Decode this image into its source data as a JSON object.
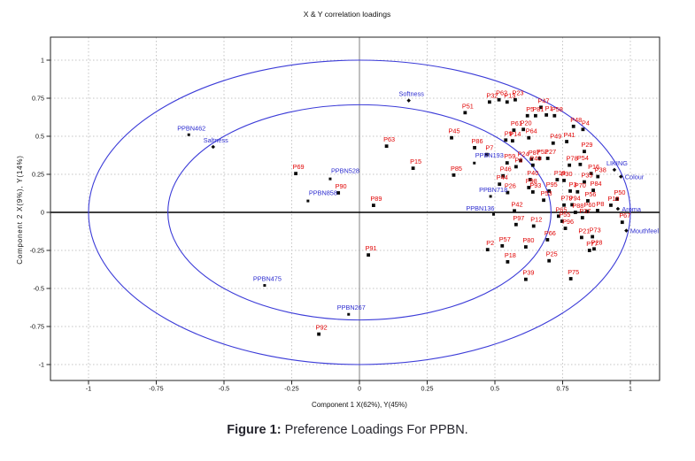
{
  "title": "X & Y correlation loadings",
  "caption": {
    "prefix": "Figure 1:",
    "text": "Preference Loadings For PPBN."
  },
  "axes": {
    "x_label": "Component 1 X(62%), Y(45%)",
    "y_label": "Component 2 X(9%), Y(14%)",
    "x_ticks": [
      "-1",
      "-0.75",
      "-0.5",
      "-0.25",
      "0",
      "0.25",
      "0.5",
      "0.75",
      "1"
    ],
    "y_ticks": [
      "-1",
      "-0.75",
      "-0.5",
      "-0.25",
      "0",
      "0.25",
      "0.5",
      "0.75",
      "1"
    ]
  },
  "colors": {
    "product_label": "#e00000",
    "sample_label": "#2b2bcf",
    "descriptor_label": "#2b2bcf",
    "ellipse": "#3c3cd8",
    "grid": "#c4c4c4",
    "marker": "#0a0a0a",
    "zero_x_line": "#808080",
    "zero_y_line": "#000000"
  },
  "chart_data": {
    "type": "scatter",
    "title": "X & Y correlation loadings",
    "xlabel": "Component 1 X(62%), Y(45%)",
    "ylabel": "Component 2 X(9%), Y(14%)",
    "xlim": [
      -1.14,
      1.11
    ],
    "ylim": [
      -1.15,
      1.15
    ],
    "grid": true,
    "legend": "none",
    "ellipses": [
      {
        "r": 1.0
      },
      {
        "r": 0.7071
      }
    ],
    "series": [
      {
        "name": "products",
        "color": "#e00000",
        "marker": "square",
        "points": [
          {
            "label": "P32",
            "x": 0.48,
            "y": 0.725
          },
          {
            "label": "P62",
            "x": 0.515,
            "y": 0.74
          },
          {
            "label": "P13",
            "x": 0.545,
            "y": 0.725
          },
          {
            "label": "P23",
            "x": 0.575,
            "y": 0.74
          },
          {
            "label": "P51",
            "x": 0.39,
            "y": 0.655
          },
          {
            "label": "P47",
            "x": 0.67,
            "y": 0.69
          },
          {
            "label": "P5",
            "x": 0.62,
            "y": 0.635
          },
          {
            "label": "P81",
            "x": 0.65,
            "y": 0.635
          },
          {
            "label": "P1",
            "x": 0.69,
            "y": 0.64
          },
          {
            "label": "P58",
            "x": 0.72,
            "y": 0.635
          },
          {
            "label": "P48",
            "x": 0.79,
            "y": 0.565
          },
          {
            "label": "P4",
            "x": 0.825,
            "y": 0.545
          },
          {
            "label": "P61",
            "x": 0.57,
            "y": 0.54
          },
          {
            "label": "P20",
            "x": 0.605,
            "y": 0.545
          },
          {
            "label": "P64",
            "x": 0.625,
            "y": 0.49
          },
          {
            "label": "P9",
            "x": 0.54,
            "y": 0.475
          },
          {
            "label": "P14",
            "x": 0.565,
            "y": 0.47
          },
          {
            "label": "P49",
            "x": 0.715,
            "y": 0.455
          },
          {
            "label": "P41",
            "x": 0.765,
            "y": 0.465
          },
          {
            "label": "P29",
            "x": 0.83,
            "y": 0.4
          },
          {
            "label": "P63",
            "x": 0.1,
            "y": 0.435
          },
          {
            "label": "P45",
            "x": 0.34,
            "y": 0.49
          },
          {
            "label": "P86",
            "x": 0.425,
            "y": 0.425
          },
          {
            "label": "P7",
            "x": 0.47,
            "y": 0.38
          },
          {
            "label": "P15",
            "x": 0.198,
            "y": 0.29
          },
          {
            "label": "P85",
            "x": 0.348,
            "y": 0.245
          },
          {
            "label": "P69",
            "x": -0.235,
            "y": 0.255
          },
          {
            "label": "P90",
            "x": -0.078,
            "y": 0.128
          },
          {
            "label": "P89",
            "x": 0.052,
            "y": 0.046
          },
          {
            "label": "P59",
            "x": 0.545,
            "y": 0.325
          },
          {
            "label": "P24",
            "x": 0.595,
            "y": 0.34
          },
          {
            "label": "P6",
            "x": 0.578,
            "y": 0.3
          },
          {
            "label": "P87",
            "x": 0.635,
            "y": 0.35
          },
          {
            "label": "P52",
            "x": 0.665,
            "y": 0.355
          },
          {
            "label": "P27",
            "x": 0.695,
            "y": 0.355
          },
          {
            "label": "P43",
            "x": 0.64,
            "y": 0.31
          },
          {
            "label": "P78",
            "x": 0.775,
            "y": 0.31
          },
          {
            "label": "P54",
            "x": 0.815,
            "y": 0.315
          },
          {
            "label": "P16",
            "x": 0.855,
            "y": 0.255
          },
          {
            "label": "P35",
            "x": 0.83,
            "y": 0.2
          },
          {
            "label": "P38",
            "x": 0.88,
            "y": 0.235
          },
          {
            "label": "P46",
            "x": 0.53,
            "y": 0.24
          },
          {
            "label": "P44",
            "x": 0.517,
            "y": 0.185
          },
          {
            "label": "P26",
            "x": 0.547,
            "y": 0.13
          },
          {
            "label": "P19",
            "x": 0.73,
            "y": 0.215
          },
          {
            "label": "P30",
            "x": 0.755,
            "y": 0.21
          },
          {
            "label": "P40",
            "x": 0.63,
            "y": 0.215
          },
          {
            "label": "P98",
            "x": 0.625,
            "y": 0.163
          },
          {
            "label": "P93",
            "x": 0.64,
            "y": 0.134
          },
          {
            "label": "P95",
            "x": 0.7,
            "y": 0.14
          },
          {
            "label": "P3",
            "x": 0.778,
            "y": 0.14
          },
          {
            "label": "P70",
            "x": 0.805,
            "y": 0.135
          },
          {
            "label": "P84",
            "x": 0.863,
            "y": 0.145
          },
          {
            "label": "P53",
            "x": 0.68,
            "y": 0.08
          },
          {
            "label": "P79",
            "x": 0.755,
            "y": 0.048
          },
          {
            "label": "P94",
            "x": 0.785,
            "y": 0.05
          },
          {
            "label": "P56",
            "x": 0.843,
            "y": 0.076
          },
          {
            "label": "P50",
            "x": 0.951,
            "y": 0.087
          },
          {
            "label": "P10",
            "x": 0.928,
            "y": 0.047
          },
          {
            "label": "P88",
            "x": 0.797,
            "y": 0.0
          },
          {
            "label": "P60",
            "x": 0.84,
            "y": 0.005
          },
          {
            "label": "P8",
            "x": 0.879,
            "y": 0.012
          },
          {
            "label": "P42",
            "x": 0.572,
            "y": 0.01
          },
          {
            "label": "P97",
            "x": 0.578,
            "y": -0.08
          },
          {
            "label": "P12",
            "x": 0.643,
            "y": -0.09
          },
          {
            "label": "P65",
            "x": 0.735,
            "y": -0.025
          },
          {
            "label": "P55",
            "x": 0.748,
            "y": -0.058
          },
          {
            "label": "P37",
            "x": 0.823,
            "y": -0.035
          },
          {
            "label": "P96",
            "x": 0.76,
            "y": -0.105
          },
          {
            "label": "P67",
            "x": 0.97,
            "y": -0.065
          },
          {
            "label": "P2",
            "x": 0.473,
            "y": -0.245
          },
          {
            "label": "P57",
            "x": 0.527,
            "y": -0.22
          },
          {
            "label": "P80",
            "x": 0.614,
            "y": -0.227
          },
          {
            "label": "P66",
            "x": 0.694,
            "y": -0.18
          },
          {
            "label": "P21",
            "x": 0.82,
            "y": -0.165
          },
          {
            "label": "P73",
            "x": 0.86,
            "y": -0.16
          },
          {
            "label": "P28",
            "x": 0.866,
            "y": -0.24
          },
          {
            "label": "P18",
            "x": 0.547,
            "y": -0.325
          },
          {
            "label": "P25",
            "x": 0.7,
            "y": -0.318
          },
          {
            "label": "P77",
            "x": 0.849,
            "y": -0.25
          },
          {
            "label": "P39",
            "x": 0.614,
            "y": -0.44
          },
          {
            "label": "P75",
            "x": 0.78,
            "y": -0.436
          },
          {
            "label": "P91",
            "x": 0.033,
            "y": -0.28
          },
          {
            "label": "P92",
            "x": -0.15,
            "y": -0.8
          }
        ]
      },
      {
        "name": "ppbn_samples",
        "color": "#2b2bcf",
        "marker": "small-square",
        "points": [
          {
            "label": "PPBN462",
            "x": -0.63,
            "y": 0.51,
            "lp": "above"
          },
          {
            "label": "PPBN528",
            "x": -0.108,
            "y": 0.22,
            "lp": "above-right"
          },
          {
            "label": "PPBN858",
            "x": -0.19,
            "y": 0.075,
            "lp": "above-right"
          },
          {
            "label": "PPBN475",
            "x": -0.35,
            "y": -0.48,
            "lp": "above"
          },
          {
            "label": "PPBN267",
            "x": -0.04,
            "y": -0.67,
            "lp": "above"
          },
          {
            "label": "PPBN193",
            "x": 0.424,
            "y": 0.324,
            "lp": "above-right"
          },
          {
            "label": "PPBN718",
            "x": 0.484,
            "y": 0.105,
            "lp": "above"
          },
          {
            "label": "PPBN136",
            "x": 0.495,
            "y": -0.013,
            "lp": "above-left"
          }
        ]
      },
      {
        "name": "descriptors",
        "color": "#2b2bcf",
        "marker": "diamond",
        "points": [
          {
            "label": "Softness",
            "x": 0.182,
            "y": 0.735,
            "lp": "above"
          },
          {
            "label": "Saltness",
            "x": -0.54,
            "y": 0.43,
            "lp": "above"
          },
          {
            "label": "LIKING",
            "x": 0.941,
            "y": 0.28,
            "lp": "above"
          },
          {
            "label": "Colour",
            "x": 0.965,
            "y": 0.235,
            "lp": "right"
          },
          {
            "label": "Aroma",
            "x": 0.954,
            "y": 0.023,
            "lp": "right"
          },
          {
            "label": "Mouthfeel",
            "x": 0.985,
            "y": -0.12,
            "lp": "right"
          }
        ]
      }
    ]
  }
}
